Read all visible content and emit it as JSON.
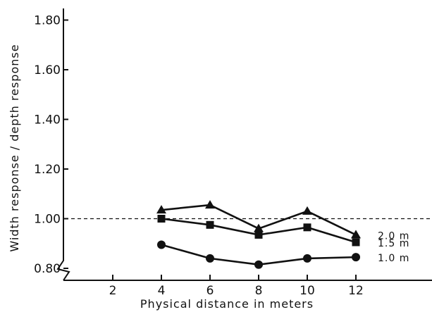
{
  "chart_data": {
    "type": "line",
    "xlabel": "Physical distance in meters",
    "ylabel": "Width response / depth response",
    "x_ticks": [
      2,
      4,
      6,
      8,
      10,
      12
    ],
    "y_ticks": [
      "0.80",
      "1.00",
      "1.20",
      "1.40",
      "1.60",
      "1.80"
    ],
    "xlim": [
      0,
      20
    ],
    "ylim": [
      0.8,
      1.85
    ],
    "reference_line": 1.0,
    "series": [
      {
        "name": "2.0 m",
        "marker": "triangle",
        "x": [
          4,
          6,
          8,
          10,
          12
        ],
        "values": [
          1.035,
          1.055,
          0.96,
          1.03,
          0.935
        ]
      },
      {
        "name": "1.5 m",
        "marker": "square",
        "x": [
          4,
          6,
          8,
          10,
          12
        ],
        "values": [
          1.0,
          0.975,
          0.935,
          0.965,
          0.905
        ]
      },
      {
        "name": "1.0 m",
        "marker": "circle",
        "x": [
          4,
          6,
          8,
          10,
          12
        ],
        "values": [
          0.895,
          0.84,
          0.815,
          0.84,
          0.845
        ]
      }
    ]
  }
}
